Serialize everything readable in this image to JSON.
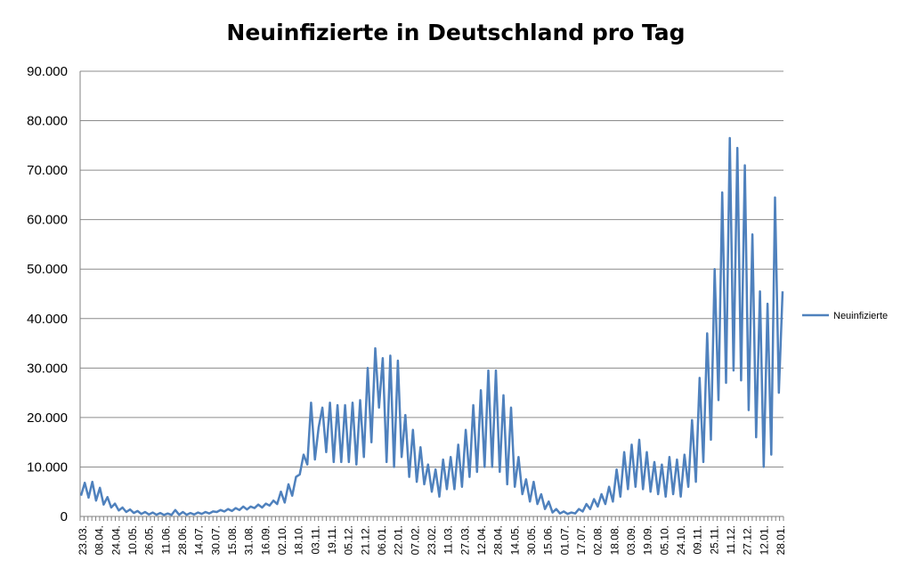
{
  "chart_data": {
    "type": "line",
    "title": "Neuinfizierte in Deutschland pro Tag",
    "xlabel": "",
    "ylabel": "",
    "ylim": [
      0,
      90000
    ],
    "grid": true,
    "legend_position": "right",
    "y_tick_labels": [
      "0",
      "10.000",
      "20.000",
      "30.000",
      "40.000",
      "50.000",
      "60.000",
      "70.000",
      "80.000",
      "90.000"
    ],
    "x_tick_labels": [
      "23.03.",
      "08.04.",
      "24.04.",
      "10.05.",
      "26.05.",
      "11.06.",
      "28.06.",
      "14.07.",
      "30.07.",
      "15.08.",
      "31.08.",
      "16.09.",
      "02.10.",
      "18.10.",
      "03.11.",
      "19.11.",
      "05.12.",
      "21.12.",
      "06.01.",
      "22.01.",
      "07.02.",
      "23.02.",
      "11.03.",
      "27.03.",
      "12.04.",
      "28.04.",
      "14.05.",
      "30.05.",
      "15.06.",
      "01.07.",
      "17.07.",
      "02.08.",
      "18.08.",
      "03.09.",
      "19.09.",
      "05.10.",
      "24.10.",
      "09.11.",
      "25.11.",
      "11.12.",
      "27.12.",
      "12.01.",
      "28.01."
    ],
    "series": [
      {
        "name": "Neuinfizierte",
        "color": "#4F81BD",
        "values": [
          4200,
          6800,
          3800,
          7000,
          3200,
          5800,
          2400,
          3900,
          1800,
          2600,
          1200,
          1800,
          900,
          1400,
          700,
          1100,
          500,
          900,
          400,
          800,
          350,
          700,
          300,
          600,
          300,
          1300,
          350,
          900,
          350,
          700,
          400,
          800,
          500,
          900,
          600,
          1000,
          900,
          1300,
          1000,
          1500,
          1100,
          1700,
          1300,
          2000,
          1400,
          2000,
          1700,
          2400,
          1800,
          2600,
          2200,
          3200,
          2500,
          5000,
          2800,
          6500,
          4200,
          8000,
          8500,
          12500,
          10500,
          23000,
          11500,
          18000,
          22000,
          13000,
          23000,
          11000,
          22500,
          11000,
          22500,
          11000,
          23000,
          10500,
          23500,
          12000,
          30000,
          15000,
          34000,
          22000,
          32000,
          11000,
          32500,
          10000,
          31500,
          12000,
          20500,
          8000,
          17500,
          7000,
          14000,
          6500,
          10500,
          5000,
          9500,
          4000,
          11500,
          5500,
          12000,
          5500,
          14500,
          6000,
          17500,
          8000,
          22500,
          9000,
          25500,
          10000,
          29500,
          10000,
          29500,
          9000,
          24500,
          6500,
          22000,
          6000,
          12000,
          4500,
          7500,
          3000,
          7000,
          2500,
          4500,
          1500,
          3000,
          800,
          1500,
          600,
          1000,
          500,
          800,
          600,
          1500,
          1000,
          2500,
          1500,
          3500,
          2000,
          4500,
          2500,
          6000,
          3000,
          9500,
          4000,
          13000,
          5500,
          14500,
          6000,
          15500,
          5500,
          13000,
          5000,
          11000,
          4500,
          10500,
          4000,
          12000,
          4500,
          11500,
          4000,
          12500,
          6000,
          19500,
          7000,
          28000,
          11000,
          37000,
          15500,
          50000,
          23500,
          65500,
          27000,
          76500,
          29500,
          74500,
          27500,
          71000,
          21500,
          57000,
          16000,
          45500,
          10000,
          43000,
          12500,
          64500,
          25000,
          45500
        ]
      }
    ]
  },
  "legend": {
    "label": "Neuinfizierte"
  }
}
